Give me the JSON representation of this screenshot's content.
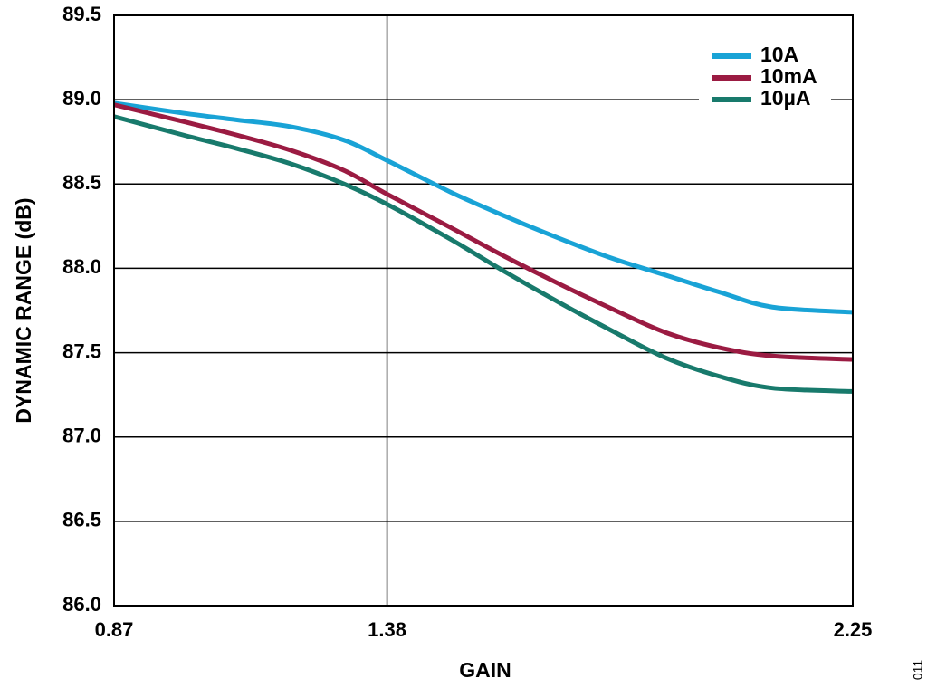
{
  "chart_data": {
    "type": "line",
    "title": "",
    "xlabel": "GAIN",
    "ylabel": "DYNAMIC RANGE (dB)",
    "x_ticks": [
      "0.87",
      "1.38",
      "2.25"
    ],
    "y_ticks": [
      "89.5",
      "89.0",
      "88.5",
      "88.0",
      "87.5",
      "87.0",
      "86.5",
      "86.0"
    ],
    "x_tick_values": [
      0.87,
      1.38,
      2.25
    ],
    "y_tick_values": [
      89.5,
      89.0,
      88.5,
      88.0,
      87.5,
      87.0,
      86.5,
      86.0
    ],
    "xlim": [
      0.87,
      2.25
    ],
    "ylim": [
      86.0,
      89.5
    ],
    "grid": true,
    "legend_position": "top-right",
    "series": [
      {
        "name": "10A",
        "color": "#19a3d6",
        "x": [
          0.87,
          1.0,
          1.1,
          1.2,
          1.3,
          1.38,
          1.5,
          1.6,
          1.7,
          1.8,
          1.9,
          2.0,
          2.1,
          2.25
        ],
        "y": [
          88.98,
          88.92,
          88.88,
          88.84,
          88.76,
          88.64,
          88.45,
          88.31,
          88.18,
          88.06,
          87.96,
          87.86,
          87.77,
          87.74
        ]
      },
      {
        "name": "10mA",
        "color": "#9b1b42",
        "x": [
          0.87,
          1.0,
          1.1,
          1.2,
          1.3,
          1.38,
          1.5,
          1.6,
          1.7,
          1.8,
          1.9,
          2.0,
          2.1,
          2.25
        ],
        "y": [
          88.97,
          88.87,
          88.79,
          88.7,
          88.58,
          88.44,
          88.24,
          88.07,
          87.91,
          87.76,
          87.62,
          87.53,
          87.48,
          87.46
        ]
      },
      {
        "name": "10µA",
        "color": "#187a6c",
        "x": [
          0.87,
          1.0,
          1.1,
          1.2,
          1.3,
          1.38,
          1.5,
          1.6,
          1.7,
          1.8,
          1.9,
          2.0,
          2.1,
          2.25
        ],
        "y": [
          88.9,
          88.79,
          88.71,
          88.62,
          88.5,
          88.38,
          88.17,
          87.98,
          87.8,
          87.63,
          87.47,
          87.36,
          87.29,
          87.27
        ]
      }
    ]
  },
  "figure_id": "011"
}
